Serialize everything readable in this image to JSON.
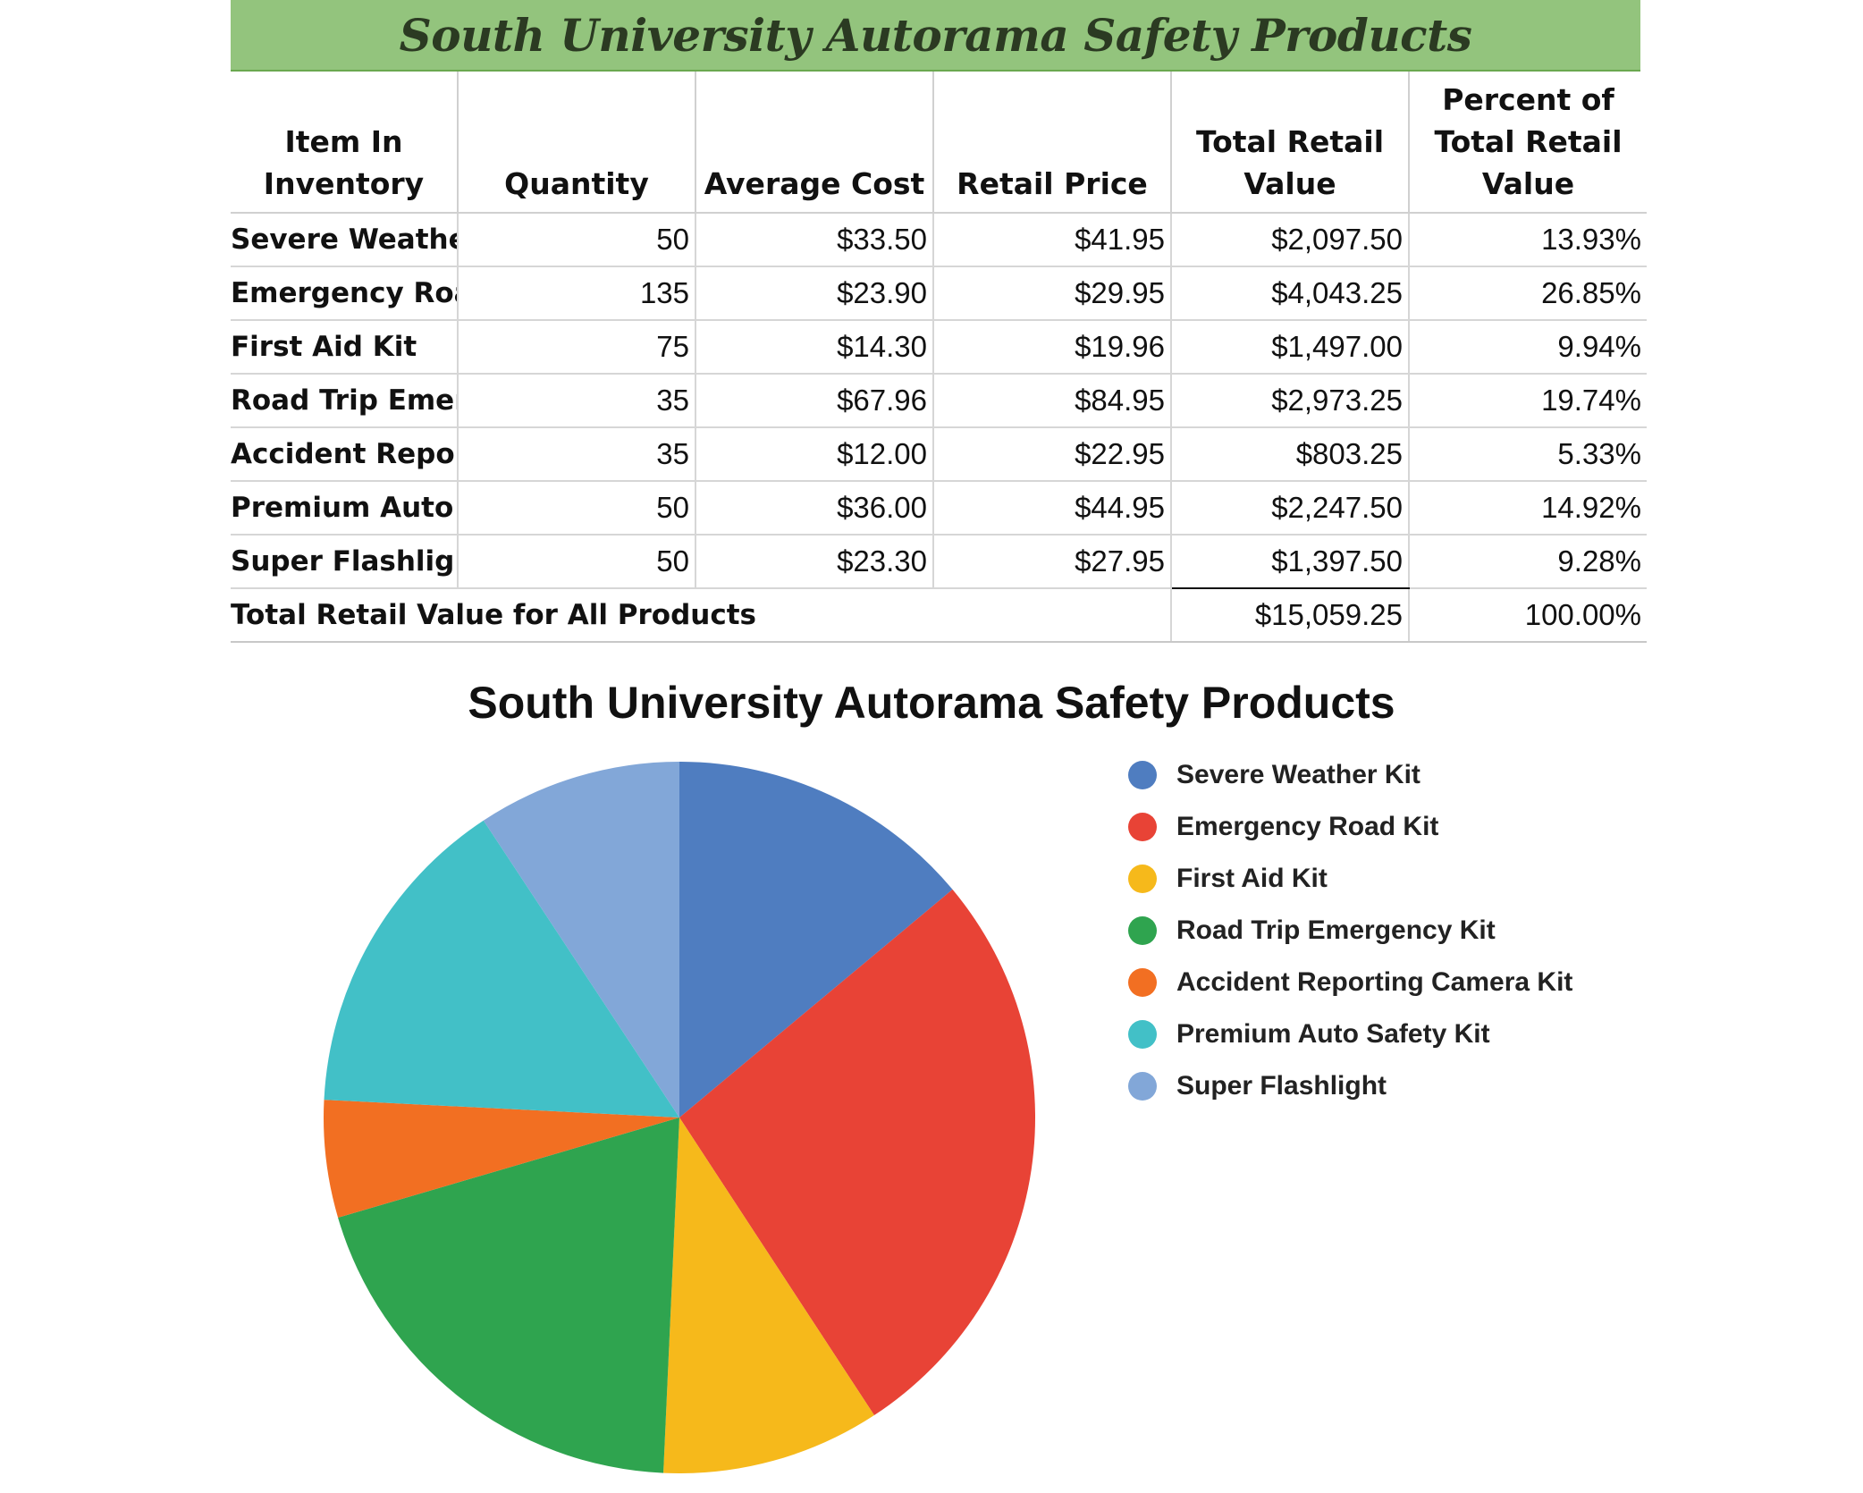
{
  "sheet": {
    "title": "South University Autorama Safety Products",
    "headers": [
      "Item In Inventory",
      "Quantity",
      "Average Cost",
      "Retail Price",
      "Total Retail Value",
      "Percent of Total Retail Value"
    ],
    "rows": [
      {
        "item": "Severe Weather",
        "quantity": "50",
        "avg_cost": "$33.50",
        "retail_price": "$41.95",
        "total_retail": "$2,097.50",
        "percent": "13.93%"
      },
      {
        "item": "Emergency Roac",
        "quantity": "135",
        "avg_cost": "$23.90",
        "retail_price": "$29.95",
        "total_retail": "$4,043.25",
        "percent": "26.85%"
      },
      {
        "item": "First Aid Kit",
        "quantity": "75",
        "avg_cost": "$14.30",
        "retail_price": "$19.96",
        "total_retail": "$1,497.00",
        "percent": "9.94%"
      },
      {
        "item": "Road Trip Emerg",
        "quantity": "35",
        "avg_cost": "$67.96",
        "retail_price": "$84.95",
        "total_retail": "$2,973.25",
        "percent": "19.74%"
      },
      {
        "item": "Accident Report",
        "quantity": "35",
        "avg_cost": "$12.00",
        "retail_price": "$22.95",
        "total_retail": "$803.25",
        "percent": "5.33%"
      },
      {
        "item": "Premium Auto S",
        "quantity": "50",
        "avg_cost": "$36.00",
        "retail_price": "$44.95",
        "total_retail": "$2,247.50",
        "percent": "14.92%"
      },
      {
        "item": "Super Flashlight",
        "quantity": "50",
        "avg_cost": "$23.30",
        "retail_price": "$27.95",
        "total_retail": "$1,397.50",
        "percent": "9.28%"
      }
    ],
    "total": {
      "label": "Total Retail Value for All Products",
      "total_retail": "$15,059.25",
      "percent": "100.00%"
    }
  },
  "chart_data": {
    "type": "pie",
    "title": "South University Autorama Safety Products",
    "categories": [
      "Severe Weather Kit",
      "Emergency Road Kit",
      "First Aid Kit",
      "Road Trip Emergency Kit",
      "Accident Reporting Camera Kit",
      "Premium Auto Safety Kit",
      "Super Flashlight"
    ],
    "values": [
      2097.5,
      4043.25,
      1497.0,
      2973.25,
      803.25,
      2247.5,
      1397.5
    ],
    "colors": [
      "#4f7dc0",
      "#e84336",
      "#f6b91b",
      "#2fa44f",
      "#f26f22",
      "#42c0c7",
      "#82a7d8"
    ],
    "legend_position": "right"
  }
}
